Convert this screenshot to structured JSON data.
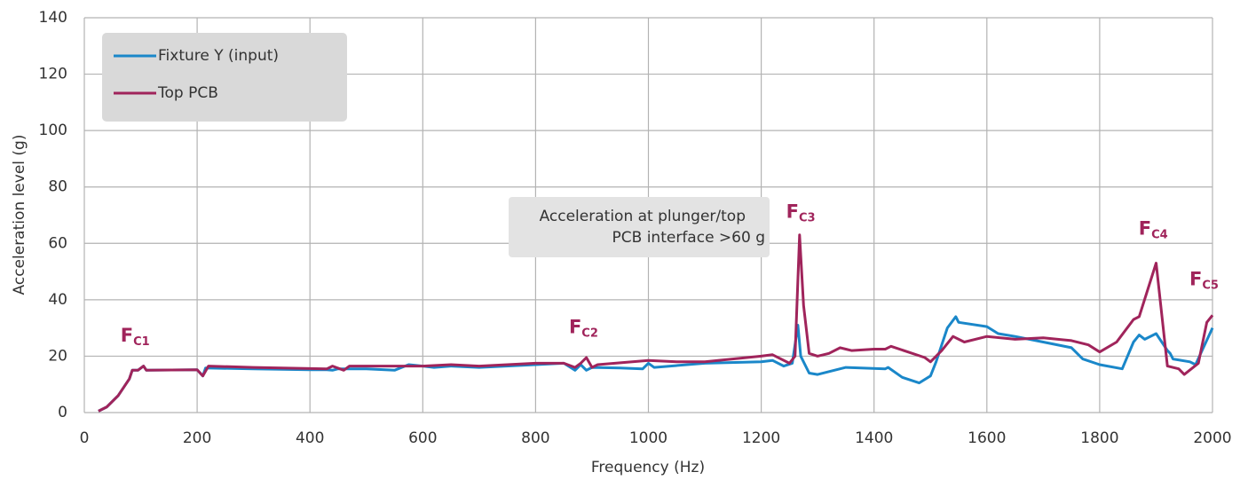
{
  "chart_data": {
    "type": "line",
    "xlabel": "Frequency (Hz)",
    "ylabel": "Acceleration level (g)",
    "xlim": [
      0,
      2000
    ],
    "xticks": [
      0,
      200,
      400,
      600,
      800,
      1000,
      1200,
      1400,
      1600,
      1800,
      2000
    ],
    "ylim": [
      0,
      140
    ],
    "yticks": [
      0,
      20,
      40,
      60,
      80,
      100,
      120,
      140
    ],
    "grid": true,
    "legend": "upper-left",
    "note": [
      "Acceleration at plunger/top",
      "PCB interface >60 g"
    ],
    "annotations": [
      {
        "text": "F",
        "subscript": "C1",
        "x": 90,
        "y": 27
      },
      {
        "text": "F",
        "subscript": "C2",
        "x": 885,
        "y": 30
      },
      {
        "text": "F",
        "subscript": "C3",
        "x": 1270,
        "y": 71
      },
      {
        "text": "F",
        "subscript": "C4",
        "x": 1895,
        "y": 65
      },
      {
        "text": "F",
        "subscript": "C5",
        "x": 1985,
        "y": 47
      }
    ],
    "series": [
      {
        "name": "Fixture Y (input)",
        "color": "#1a87c9",
        "x": [
          25,
          40,
          60,
          80,
          85,
          95,
          105,
          110,
          200,
          210,
          215,
          300,
          400,
          430,
          440,
          450,
          500,
          550,
          575,
          600,
          620,
          650,
          700,
          800,
          850,
          870,
          880,
          890,
          900,
          950,
          990,
          1000,
          1010,
          1100,
          1200,
          1220,
          1240,
          1255,
          1265,
          1270,
          1285,
          1300,
          1350,
          1420,
          1425,
          1450,
          1480,
          1500,
          1510,
          1530,
          1545,
          1550,
          1600,
          1620,
          1650,
          1700,
          1750,
          1770,
          1800,
          1840,
          1860,
          1870,
          1880,
          1900,
          1920,
          1925,
          1930,
          1960,
          1970,
          2000
        ],
        "values": [
          0.5,
          2,
          6,
          12,
          15,
          15,
          16.5,
          15,
          15.2,
          13,
          15.8,
          15.5,
          15.2,
          15.2,
          15,
          15.5,
          15.5,
          15,
          17,
          16.5,
          16,
          16.5,
          16,
          17,
          17.5,
          15,
          17,
          15,
          16,
          15.8,
          15.5,
          17.5,
          16,
          17.5,
          18,
          18.5,
          16.5,
          17.5,
          31,
          20,
          14,
          13.5,
          16,
          15.5,
          16,
          12.5,
          10.5,
          13,
          18,
          30,
          34,
          32,
          30.5,
          28,
          27,
          25,
          23,
          19,
          17,
          15.5,
          25,
          27.5,
          26,
          28,
          22,
          21,
          19,
          18,
          17,
          30
        ]
      },
      {
        "name": "Top PCB",
        "color": "#a0245b",
        "x": [
          25,
          40,
          60,
          80,
          85,
          95,
          105,
          110,
          200,
          210,
          220,
          300,
          430,
          440,
          460,
          470,
          500,
          600,
          650,
          700,
          750,
          800,
          850,
          870,
          880,
          890,
          900,
          910,
          1000,
          1050,
          1100,
          1200,
          1220,
          1250,
          1260,
          1268,
          1275,
          1285,
          1300,
          1320,
          1340,
          1350,
          1360,
          1400,
          1420,
          1430,
          1490,
          1500,
          1520,
          1540,
          1560,
          1600,
          1650,
          1700,
          1750,
          1780,
          1800,
          1830,
          1860,
          1870,
          1900,
          1920,
          1940,
          1950,
          1975,
          1990,
          2000
        ],
        "values": [
          0.5,
          2,
          6,
          12,
          15,
          15,
          16.5,
          15,
          15.2,
          13,
          16.5,
          16,
          15.5,
          16.5,
          15,
          16.5,
          16.5,
          16.5,
          17,
          16.5,
          17,
          17.5,
          17.5,
          16,
          17.5,
          19.5,
          16,
          17,
          18.5,
          18,
          18,
          20,
          20.5,
          17.5,
          20,
          63,
          38,
          21,
          20,
          21,
          23,
          22.5,
          22,
          22.5,
          22.5,
          23.5,
          19.5,
          18,
          22,
          27,
          25,
          27,
          26,
          26.5,
          25.5,
          24,
          21.5,
          25,
          33,
          34,
          53,
          16.5,
          15.5,
          13.5,
          17.5,
          32,
          34.5
        ]
      }
    ]
  }
}
